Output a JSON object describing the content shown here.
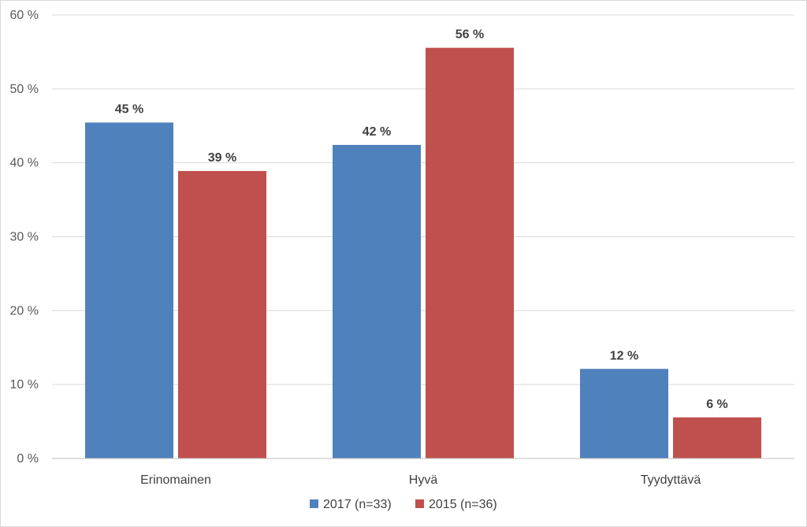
{
  "chart_data": {
    "type": "bar",
    "title": "",
    "xlabel": "",
    "ylabel": "",
    "categories": [
      "Erinomainen",
      "Hyvä",
      "Tyydyttävä"
    ],
    "series": [
      {
        "name": "2017 (n=33)",
        "values": [
          45.45,
          42.42,
          12.12
        ],
        "labels": [
          "45 %",
          "42 %",
          "12 %"
        ],
        "color": "#4f81bd"
      },
      {
        "name": "2015 (n=36)",
        "values": [
          38.89,
          55.56,
          5.56
        ],
        "labels": [
          "39 %",
          "56 %",
          "6 %"
        ],
        "color": "#c0504d"
      }
    ],
    "ylim": [
      0,
      60
    ],
    "yticks": [
      0,
      10,
      20,
      30,
      40,
      50,
      60
    ],
    "ytick_labels": [
      "0 %",
      "10 %",
      "20 %",
      "30 %",
      "40 %",
      "50 %",
      "60 %"
    ],
    "grid": true,
    "legend_position": "bottom"
  },
  "colors": {
    "gridline": "#d9d9d9",
    "axis": "#bfbfbf"
  }
}
